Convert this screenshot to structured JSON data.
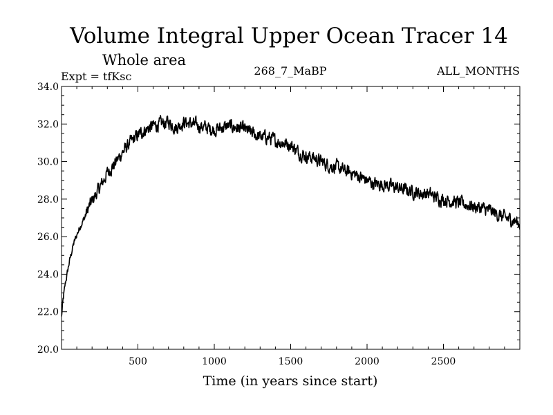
{
  "chart_data": {
    "type": "line",
    "title": "Volume Integral Upper Ocean Tracer 14",
    "subtitle": "Whole area",
    "experiment_label": "Expt = tfKsc",
    "center_label": "268_7_MaBP",
    "right_label": "ALL_MONTHS",
    "xlabel": "Time (in years since start)",
    "ylabel": "",
    "xlim": [
      0,
      3000
    ],
    "ylim": [
      20.0,
      34.0
    ],
    "x_ticks": [
      500,
      1000,
      1500,
      2000,
      2500
    ],
    "x_tick_labels": [
      "500",
      "1000",
      "1500",
      "2000",
      "2500"
    ],
    "y_ticks": [
      20,
      22,
      24,
      26,
      28,
      30,
      32,
      34
    ],
    "y_tick_labels": [
      "20.0",
      "22.0",
      "24.0",
      "26.0",
      "28.0",
      "30.0",
      "32.0",
      "34.0"
    ],
    "grid": false,
    "series": [
      {
        "name": "Tracer 14",
        "x": [
          0,
          10,
          25,
          50,
          75,
          100,
          125,
          150,
          175,
          200,
          250,
          300,
          350,
          400,
          450,
          500,
          550,
          600,
          650,
          700,
          750,
          800,
          850,
          900,
          950,
          1000,
          1050,
          1100,
          1150,
          1200,
          1250,
          1300,
          1350,
          1400,
          1450,
          1500,
          1550,
          1600,
          1650,
          1700,
          1750,
          1800,
          1850,
          1900,
          1950,
          2000,
          2050,
          2100,
          2150,
          2200,
          2250,
          2300,
          2350,
          2400,
          2450,
          2500,
          2550,
          2600,
          2650,
          2700,
          2750,
          2800,
          2850,
          2900,
          2950,
          3000
        ],
        "y": [
          21.7,
          22.6,
          23.5,
          24.6,
          25.5,
          26.1,
          26.6,
          27.0,
          27.5,
          27.9,
          28.6,
          29.4,
          29.9,
          30.5,
          31.0,
          31.4,
          31.7,
          31.9,
          32.0,
          32.1,
          31.8,
          32.1,
          32.0,
          31.9,
          31.8,
          31.7,
          31.8,
          31.9,
          31.8,
          31.7,
          31.5,
          31.3,
          31.3,
          31.1,
          31.0,
          30.9,
          30.5,
          30.3,
          30.2,
          30.0,
          29.8,
          29.7,
          29.5,
          29.4,
          29.2,
          29.0,
          28.8,
          28.8,
          28.7,
          28.6,
          28.5,
          28.4,
          28.3,
          28.3,
          28.1,
          28.0,
          27.9,
          27.8,
          27.7,
          27.6,
          27.5,
          27.4,
          27.2,
          27.0,
          26.9,
          26.7
        ]
      }
    ]
  }
}
